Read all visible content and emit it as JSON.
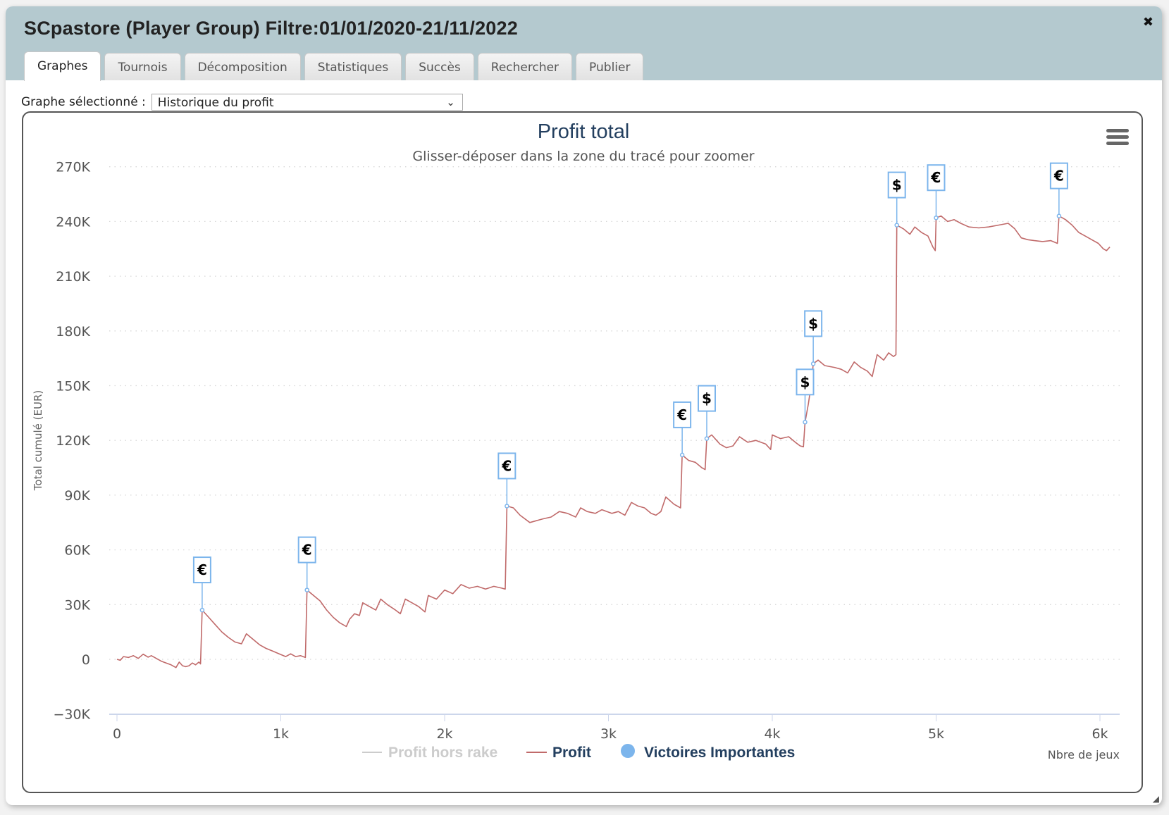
{
  "window": {
    "title": "SCpastore (Player Group) Filtre:01/01/2020-21/11/2022",
    "close_glyph": "✖",
    "resize_glyph": "◢"
  },
  "tabs": [
    {
      "label": "Graphes",
      "active": true
    },
    {
      "label": "Tournois",
      "active": false
    },
    {
      "label": "Décomposition",
      "active": false
    },
    {
      "label": "Statistiques",
      "active": false
    },
    {
      "label": "Succès",
      "active": false
    },
    {
      "label": "Rechercher",
      "active": false
    },
    {
      "label": "Publier",
      "active": false
    }
  ],
  "selector": {
    "label": "Graphe sélectionné :",
    "value": "Historique du profit",
    "chevron": "⌄"
  },
  "colors": {
    "profit_line": "#c06a6a",
    "marker": "#7cb5ec",
    "title": "#233f5f",
    "legend_text": "#233f5f",
    "legend_hidden": "#cccccc"
  },
  "chart_data": {
    "type": "line",
    "title": "Profit total",
    "subtitle": "Glisser-déposer dans la zone du tracé pour zoomer",
    "xlabel": "Nbre de jeux",
    "ylabel": "Total cumulé (EUR)",
    "xlim": [
      0,
      6100
    ],
    "ylim": [
      -30000,
      270000
    ],
    "x_ticks": [
      {
        "value": 0,
        "label": "0"
      },
      {
        "value": 1000,
        "label": "1k"
      },
      {
        "value": 2000,
        "label": "2k"
      },
      {
        "value": 3000,
        "label": "3k"
      },
      {
        "value": 4000,
        "label": "4k"
      },
      {
        "value": 5000,
        "label": "5k"
      },
      {
        "value": 6000,
        "label": "6k"
      }
    ],
    "y_ticks": [
      {
        "value": 270000,
        "label": "270K"
      },
      {
        "value": 240000,
        "label": "240K"
      },
      {
        "value": 210000,
        "label": "210K"
      },
      {
        "value": 180000,
        "label": "180K"
      },
      {
        "value": 150000,
        "label": "150K"
      },
      {
        "value": 120000,
        "label": "120K"
      },
      {
        "value": 90000,
        "label": "90K"
      },
      {
        "value": 60000,
        "label": "60K"
      },
      {
        "value": 30000,
        "label": "30K"
      },
      {
        "value": 0,
        "label": "0"
      },
      {
        "value": -30000,
        "label": "−30K"
      }
    ],
    "grid": true,
    "legend": [
      {
        "name": "Profit hors rake",
        "symbol": "line",
        "visible": false
      },
      {
        "name": "Profit",
        "symbol": "line",
        "visible": true
      },
      {
        "name": "Victoires Importantes",
        "symbol": "circle",
        "visible": true
      }
    ],
    "series": [
      {
        "name": "Profit",
        "points": [
          [
            0,
            0
          ],
          [
            20,
            -500
          ],
          [
            40,
            1500
          ],
          [
            70,
            1000
          ],
          [
            100,
            2000
          ],
          [
            130,
            500
          ],
          [
            160,
            2800
          ],
          [
            190,
            1200
          ],
          [
            210,
            2000
          ],
          [
            240,
            500
          ],
          [
            270,
            -1000
          ],
          [
            300,
            -2000
          ],
          [
            330,
            -3000
          ],
          [
            360,
            -4500
          ],
          [
            380,
            -1500
          ],
          [
            400,
            -3500
          ],
          [
            420,
            -4000
          ],
          [
            440,
            -3500
          ],
          [
            460,
            -2000
          ],
          [
            480,
            -3000
          ],
          [
            500,
            -1500
          ],
          [
            510,
            -2500
          ],
          [
            520,
            27000
          ],
          [
            560,
            23000
          ],
          [
            600,
            19000
          ],
          [
            640,
            15000
          ],
          [
            680,
            12000
          ],
          [
            720,
            9500
          ],
          [
            760,
            8500
          ],
          [
            790,
            14000
          ],
          [
            830,
            11000
          ],
          [
            870,
            8000
          ],
          [
            910,
            6000
          ],
          [
            950,
            4500
          ],
          [
            990,
            3000
          ],
          [
            1030,
            1500
          ],
          [
            1060,
            3000
          ],
          [
            1090,
            1500
          ],
          [
            1120,
            2000
          ],
          [
            1150,
            1000
          ],
          [
            1160,
            38000
          ],
          [
            1200,
            35000
          ],
          [
            1240,
            32000
          ],
          [
            1280,
            27000
          ],
          [
            1320,
            23000
          ],
          [
            1360,
            20000
          ],
          [
            1400,
            18000
          ],
          [
            1420,
            22000
          ],
          [
            1450,
            25000
          ],
          [
            1480,
            24000
          ],
          [
            1500,
            31000
          ],
          [
            1540,
            29000
          ],
          [
            1580,
            27000
          ],
          [
            1610,
            33000
          ],
          [
            1650,
            30000
          ],
          [
            1700,
            27000
          ],
          [
            1730,
            25000
          ],
          [
            1760,
            33000
          ],
          [
            1800,
            31000
          ],
          [
            1840,
            29000
          ],
          [
            1880,
            26000
          ],
          [
            1900,
            35000
          ],
          [
            1950,
            33000
          ],
          [
            2000,
            38000
          ],
          [
            2050,
            36000
          ],
          [
            2100,
            41000
          ],
          [
            2150,
            39000
          ],
          [
            2200,
            40000
          ],
          [
            2250,
            38500
          ],
          [
            2300,
            40000
          ],
          [
            2350,
            39000
          ],
          [
            2370,
            38500
          ],
          [
            2380,
            84000
          ],
          [
            2420,
            83000
          ],
          [
            2460,
            79000
          ],
          [
            2520,
            75000
          ],
          [
            2560,
            76000
          ],
          [
            2600,
            77000
          ],
          [
            2650,
            78000
          ],
          [
            2700,
            81000
          ],
          [
            2750,
            80000
          ],
          [
            2800,
            78000
          ],
          [
            2830,
            83000
          ],
          [
            2870,
            81000
          ],
          [
            2920,
            80000
          ],
          [
            2960,
            82000
          ],
          [
            3020,
            80000
          ],
          [
            3060,
            81000
          ],
          [
            3100,
            79000
          ],
          [
            3140,
            86000
          ],
          [
            3180,
            84000
          ],
          [
            3220,
            83000
          ],
          [
            3260,
            80000
          ],
          [
            3290,
            79000
          ],
          [
            3320,
            81000
          ],
          [
            3350,
            89000
          ],
          [
            3400,
            85000
          ],
          [
            3440,
            83000
          ],
          [
            3450,
            112000
          ],
          [
            3490,
            109000
          ],
          [
            3530,
            108000
          ],
          [
            3570,
            105000
          ],
          [
            3590,
            104000
          ],
          [
            3600,
            121000
          ],
          [
            3630,
            123000
          ],
          [
            3680,
            118000
          ],
          [
            3720,
            116000
          ],
          [
            3760,
            117000
          ],
          [
            3800,
            122000
          ],
          [
            3850,
            119000
          ],
          [
            3900,
            120000
          ],
          [
            3960,
            118000
          ],
          [
            3990,
            115000
          ],
          [
            4000,
            123000
          ],
          [
            4050,
            121000
          ],
          [
            4100,
            122000
          ],
          [
            4140,
            119000
          ],
          [
            4170,
            117000
          ],
          [
            4190,
            116500
          ],
          [
            4200,
            130000
          ],
          [
            4220,
            140000
          ],
          [
            4240,
            152000
          ],
          [
            4250,
            162000
          ],
          [
            4280,
            164000
          ],
          [
            4320,
            161000
          ],
          [
            4380,
            160000
          ],
          [
            4420,
            159000
          ],
          [
            4460,
            157000
          ],
          [
            4500,
            163000
          ],
          [
            4540,
            160000
          ],
          [
            4580,
            158000
          ],
          [
            4610,
            155000
          ],
          [
            4640,
            167000
          ],
          [
            4680,
            164000
          ],
          [
            4710,
            168000
          ],
          [
            4740,
            166000
          ],
          [
            4755,
            167000
          ],
          [
            4760,
            238000
          ],
          [
            4800,
            236000
          ],
          [
            4840,
            233000
          ],
          [
            4870,
            237000
          ],
          [
            4910,
            234000
          ],
          [
            4950,
            232000
          ],
          [
            4980,
            226000
          ],
          [
            4995,
            224000
          ],
          [
            5000,
            242000
          ],
          [
            5030,
            243000
          ],
          [
            5070,
            240000
          ],
          [
            5110,
            241000
          ],
          [
            5150,
            239000
          ],
          [
            5200,
            237000
          ],
          [
            5260,
            236500
          ],
          [
            5320,
            237000
          ],
          [
            5380,
            238000
          ],
          [
            5440,
            239000
          ],
          [
            5480,
            236000
          ],
          [
            5520,
            231000
          ],
          [
            5560,
            230000
          ],
          [
            5600,
            229500
          ],
          [
            5650,
            229000
          ],
          [
            5700,
            229500
          ],
          [
            5740,
            228000
          ],
          [
            5750,
            243000
          ],
          [
            5790,
            241000
          ],
          [
            5830,
            238000
          ],
          [
            5870,
            234000
          ],
          [
            5910,
            232000
          ],
          [
            5950,
            230000
          ],
          [
            5990,
            228000
          ],
          [
            6020,
            225000
          ],
          [
            6040,
            224000
          ],
          [
            6060,
            226000
          ]
        ]
      },
      {
        "name": "Victoires Importantes",
        "points": [
          {
            "x": 520,
            "y": 27000,
            "flag": "€"
          },
          {
            "x": 1160,
            "y": 38000,
            "flag": "€"
          },
          {
            "x": 2380,
            "y": 84000,
            "flag": "€"
          },
          {
            "x": 3450,
            "y": 112000,
            "flag": "€"
          },
          {
            "x": 3600,
            "y": 121000,
            "flag": "$"
          },
          {
            "x": 4200,
            "y": 130000,
            "flag": "$"
          },
          {
            "x": 4250,
            "y": 162000,
            "flag": "$"
          },
          {
            "x": 4760,
            "y": 238000,
            "flag": "$"
          },
          {
            "x": 5000,
            "y": 242000,
            "flag": "€"
          },
          {
            "x": 5750,
            "y": 243000,
            "flag": "€"
          }
        ]
      }
    ]
  }
}
